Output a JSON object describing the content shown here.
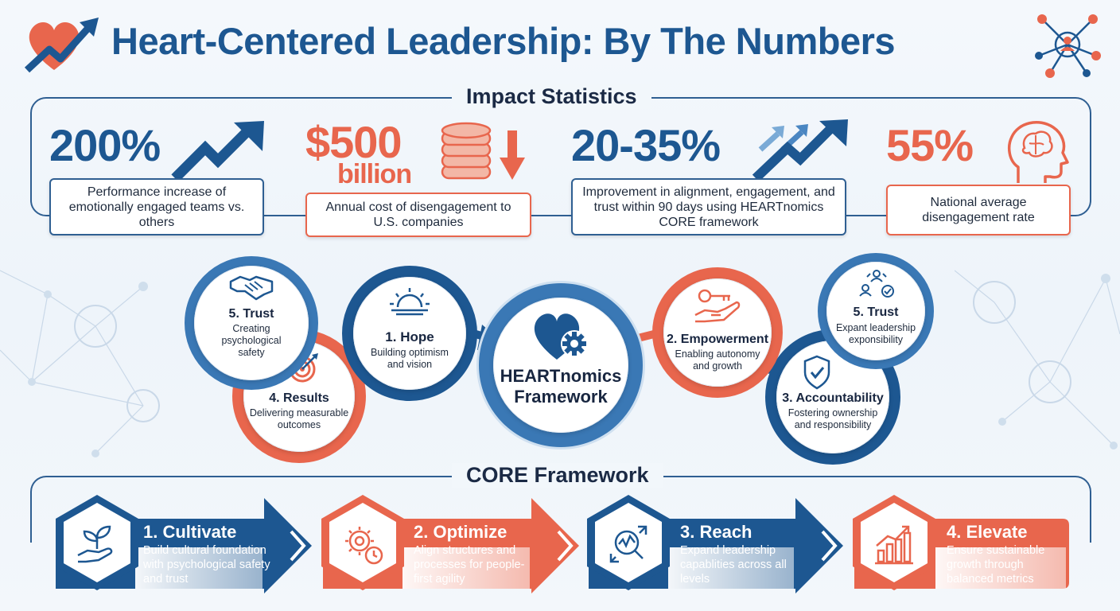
{
  "header": {
    "title": "Heart-Centered Leadership: By The Numbers",
    "logo_icon": "heart-growth-icon",
    "network_icon": "people-network-icon"
  },
  "impact": {
    "section_title": "Impact Statistics",
    "stats": [
      {
        "value": "200%",
        "description": "Performance increase of emotionally engaged teams vs. others",
        "icon": "trend-up-arrow-icon",
        "color": "#1d5791"
      },
      {
        "value": "$500",
        "value_unit": "billion",
        "description": "Annual cost of disengagement to U.S. companies",
        "icon": "coins-down-arrow-icon",
        "color": "#e8664d"
      },
      {
        "value": "20-35%",
        "description": "Improvement in alignment, engagement, and trust within 90 days using HEARTnomics CORE framework",
        "icon": "triple-trend-arrow-icon",
        "color": "#1d5791"
      },
      {
        "value": "55%",
        "description": "National average disengagement rate",
        "icon": "head-brain-icon",
        "color": "#e8664d"
      }
    ]
  },
  "framework": {
    "center": {
      "title": "HEARTnomics Framework",
      "icon": "heart-gear-icon"
    },
    "nodes": [
      {
        "title": "5. Trust",
        "subtitle": "Creating psychological safety",
        "icon": "handshake-icon"
      },
      {
        "title": "4. Results",
        "subtitle": "Delivering measurable outcomes",
        "icon": "target-icon"
      },
      {
        "title": "1. Hope",
        "subtitle": "Building optimism and vision",
        "icon": "sunrise-icon"
      },
      {
        "title": "2. Empowerment",
        "subtitle": "Enabling autonomy and growth",
        "icon": "hand-key-icon"
      },
      {
        "title": "5. Trust",
        "subtitle": "Expant leadership exponsibility",
        "icon": "team-check-icon"
      },
      {
        "title": "3. Accountability",
        "subtitle": "Fostering ownership and responsibility",
        "icon": "shield-check-icon"
      }
    ]
  },
  "core": {
    "section_title": "CORE Framework",
    "steps": [
      {
        "title": "1. Cultivate",
        "description": "Build cultural foundation with psychological safety and trust",
        "icon": "plant-hand-icon",
        "color": "#1d5791"
      },
      {
        "title": "2. Optimize",
        "description": "Align structures and processes for people-first agility",
        "icon": "gear-clock-icon",
        "color": "#e8664d"
      },
      {
        "title": "3. Reach",
        "description": "Expand leadership capablities across all levels",
        "icon": "magnify-expand-icon",
        "color": "#1d5791"
      },
      {
        "title": "4. Elevate",
        "description": "Ensure sustainable growth through balanced metrics",
        "icon": "bar-chart-growth-icon",
        "color": "#e8664d"
      }
    ]
  },
  "colors": {
    "navy": "#1d5791",
    "coral": "#e8664d",
    "ink": "#1b2a45"
  }
}
